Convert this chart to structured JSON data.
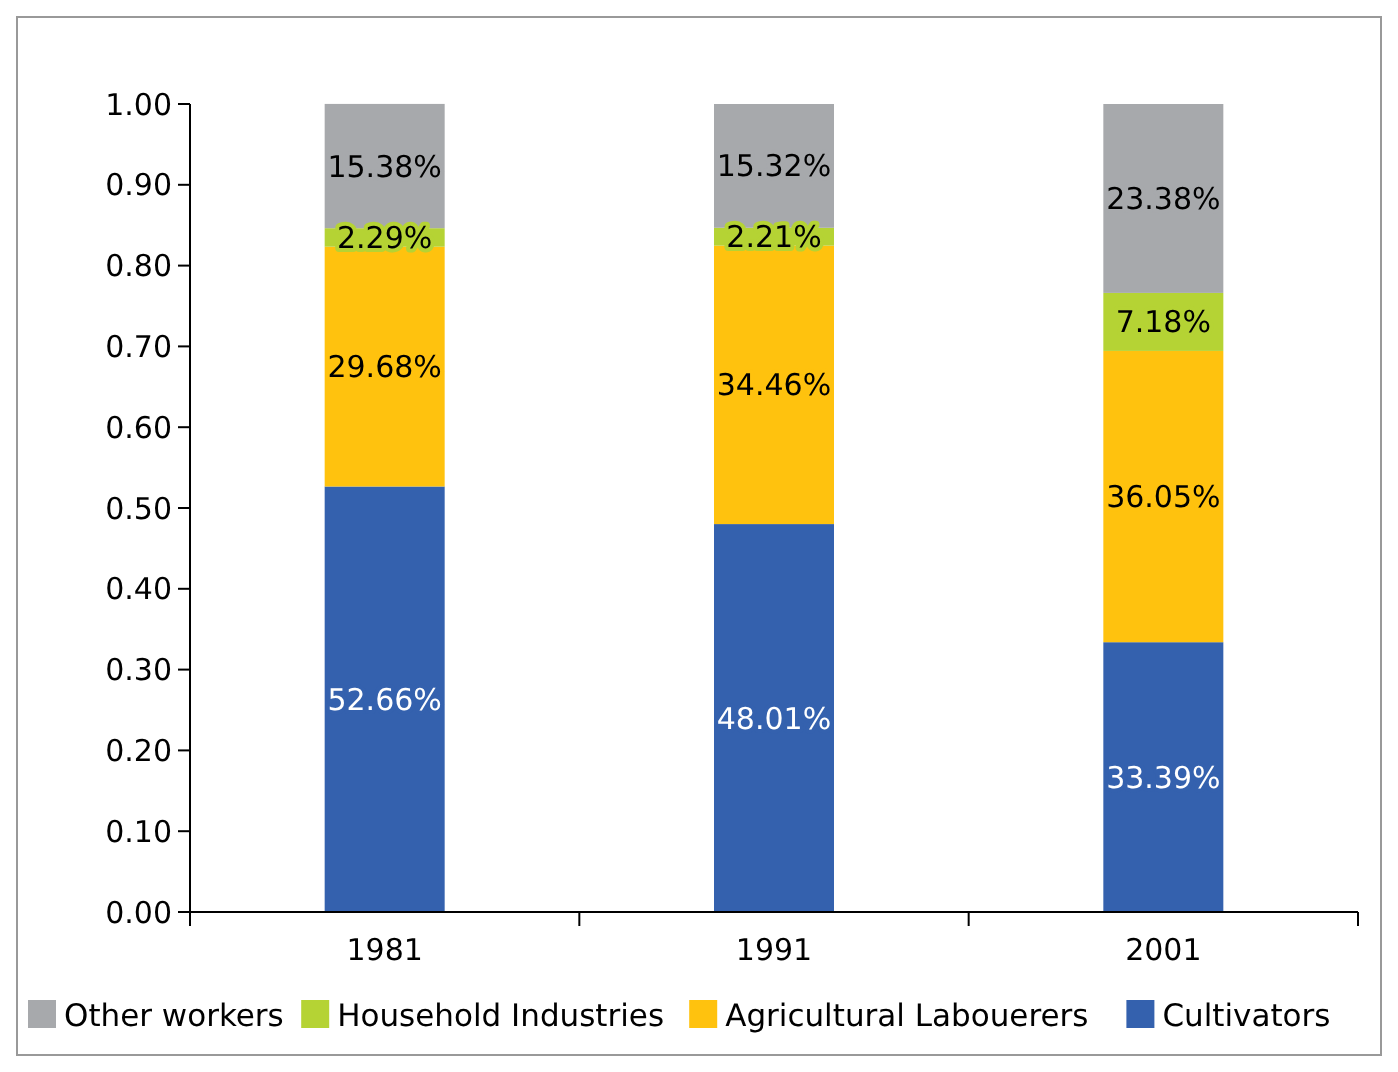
{
  "chart_data": {
    "type": "bar",
    "stacked": true,
    "categories": [
      "1981",
      "1991",
      "2001"
    ],
    "series": [
      {
        "name": "Cultivators",
        "color": "#3461ae",
        "values": [
          0.5266,
          0.4801,
          0.3339
        ],
        "value_labels": [
          "52.66%",
          "48.01%",
          "33.39%"
        ]
      },
      {
        "name": "Agricultural Labouerers",
        "color": "#ffc20e",
        "values": [
          0.2968,
          0.3446,
          0.3605
        ],
        "value_labels": [
          "29.68%",
          "34.46%",
          "36.05%"
        ]
      },
      {
        "name": "Household Industries",
        "color": "#b5d334",
        "values": [
          0.0229,
          0.0221,
          0.0718
        ],
        "value_labels": [
          "2.29%",
          "2.21%",
          "7.18%"
        ]
      },
      {
        "name": "Other workers",
        "color": "#a7a9ac",
        "values": [
          0.1538,
          0.1532,
          0.2338
        ],
        "value_labels": [
          "15.38%",
          "15.32%",
          "23.38%"
        ]
      }
    ],
    "ylim": [
      0,
      1
    ],
    "yticks": [
      {
        "value": 0,
        "label": "0.00"
      },
      {
        "value": 0.1,
        "label": "0.10"
      },
      {
        "value": 0.2,
        "label": "0.20"
      },
      {
        "value": 0.3,
        "label": "0.30"
      },
      {
        "value": 0.4,
        "label": "0.40"
      },
      {
        "value": 0.5,
        "label": "0.50"
      },
      {
        "value": 0.6,
        "label": "0.60"
      },
      {
        "value": 0.7,
        "label": "0.70"
      },
      {
        "value": 0.8,
        "label": "0.80"
      },
      {
        "value": 0.9,
        "label": "0.90"
      },
      {
        "value": 1,
        "label": "1.00"
      }
    ],
    "grid": false,
    "legend": "bottom"
  }
}
